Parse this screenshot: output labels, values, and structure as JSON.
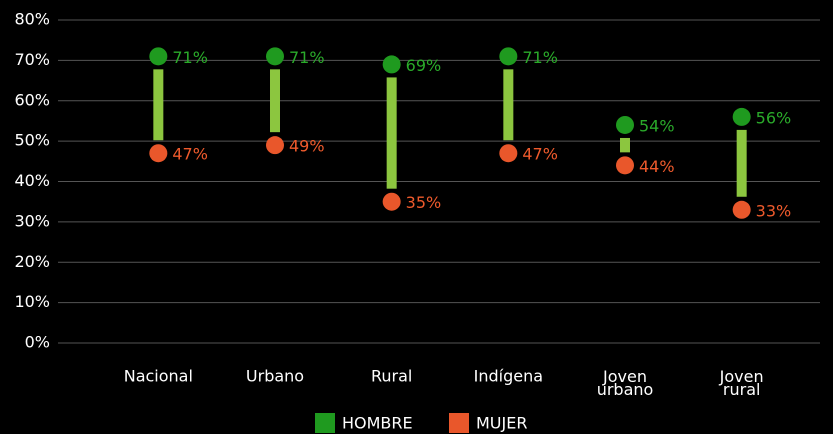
{
  "chart_data": {
    "type": "dumbbell",
    "categories": [
      "Nacional",
      "Urbano",
      "Rural",
      "Indígena",
      "Joven urbano",
      "Joven rural"
    ],
    "series": [
      {
        "name": "HOMBRE",
        "color": "#1f9a1f",
        "values": [
          71,
          71,
          69,
          71,
          54,
          56
        ],
        "value_labels": [
          "71%",
          "71%",
          "69%",
          "71%",
          "54%",
          "56%"
        ]
      },
      {
        "name": "MUJER",
        "color": "#e9572b",
        "values": [
          47,
          49,
          35,
          47,
          44,
          33
        ],
        "value_labels": [
          "47%",
          "49%",
          "35%",
          "47%",
          "44%",
          "33%"
        ]
      }
    ],
    "connector_color": "#8cc63f",
    "ylim": [
      0,
      80
    ],
    "yticks": [
      {
        "value": 0,
        "label": "0%"
      },
      {
        "value": 10,
        "label": "10%"
      },
      {
        "value": 20,
        "label": "20%"
      },
      {
        "value": 30,
        "label": "30%"
      },
      {
        "value": 40,
        "label": "40%"
      },
      {
        "value": 50,
        "label": "50%"
      },
      {
        "value": 60,
        "label": "60%"
      },
      {
        "value": 70,
        "label": "70%"
      },
      {
        "value": 80,
        "label": "80%"
      }
    ],
    "grid": true,
    "legend": "bottom"
  }
}
